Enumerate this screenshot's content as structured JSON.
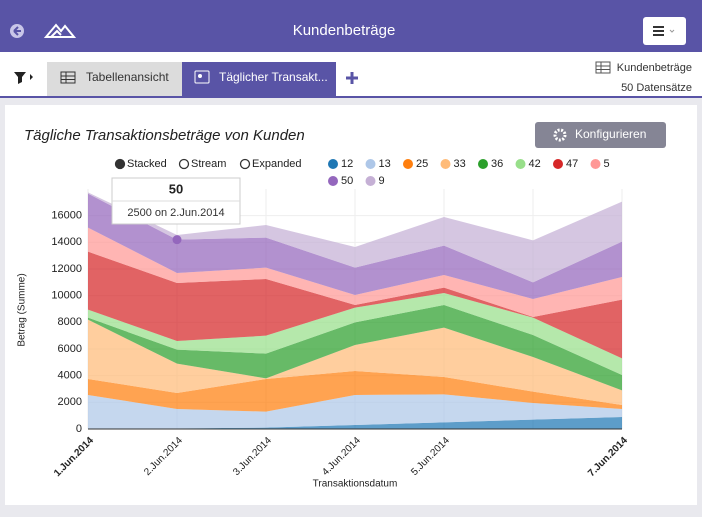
{
  "header": {
    "title": "Kundenbeträge"
  },
  "tabs": [
    "Tabellenansicht",
    "Täglicher Transakt..."
  ],
  "info": {
    "dataset": "Kundenbeträge",
    "records": "50 Datensätze"
  },
  "button": "Konfigurieren",
  "tooltip": {
    "title": "50",
    "text": "2500 on 2.Jun.2014"
  },
  "chart_data": {
    "type": "stacked-area",
    "title": "Tägliche Transaktionsbeträge von Kunden",
    "stack_modes": [
      "Stacked",
      "Stream",
      "Expanded"
    ],
    "selected_stack_mode": "Stacked",
    "x_label": "Transaktionsdatum",
    "y_label": "Betrag (Summe)",
    "categories": [
      "1.Jun.2014",
      "2.Jun.2014",
      "3.Jun.2014",
      "4.Jun.2014",
      "5.Jun.2014",
      null,
      "7.Jun.2014"
    ],
    "ylim": [
      0,
      18000
    ],
    "yticks": [
      0,
      2000,
      4000,
      6000,
      8000,
      10000,
      12000,
      14000,
      16000
    ],
    "grid": true,
    "series": [
      {
        "name": "12",
        "color": "#1f77b4",
        "values": [
          50,
          50,
          100,
          300,
          500,
          700,
          900
        ]
      },
      {
        "name": "13",
        "color": "#aec7e8",
        "values": [
          2500,
          1450,
          1200,
          2250,
          2100,
          1250,
          600
        ]
      },
      {
        "name": "25",
        "color": "#ff7f0e",
        "values": [
          1200,
          1200,
          2450,
          1800,
          1300,
          850,
          300
        ]
      },
      {
        "name": "33",
        "color": "#ffbb78",
        "values": [
          4450,
          2200,
          50,
          1950,
          3700,
          2600,
          1100
        ]
      },
      {
        "name": "36",
        "color": "#2ca02c",
        "values": [
          150,
          1050,
          1850,
          1700,
          1700,
          1650,
          1150
        ]
      },
      {
        "name": "42",
        "color": "#98df8a",
        "values": [
          600,
          650,
          1350,
          1100,
          900,
          1300,
          1250
        ]
      },
      {
        "name": "47",
        "color": "#d62728",
        "values": [
          4350,
          4350,
          4250,
          200,
          400,
          50,
          4400
        ]
      },
      {
        "name": "5",
        "color": "#ff9896",
        "values": [
          1800,
          750,
          850,
          750,
          950,
          1350,
          1700
        ]
      },
      {
        "name": "50",
        "color": "#9467bd",
        "values": [
          2550,
          2500,
          2250,
          2050,
          2200,
          1250,
          2650
        ]
      },
      {
        "name": "9",
        "color": "#c5b0d5",
        "values": [
          100,
          350,
          950,
          1550,
          2150,
          3150,
          3000
        ]
      }
    ]
  }
}
